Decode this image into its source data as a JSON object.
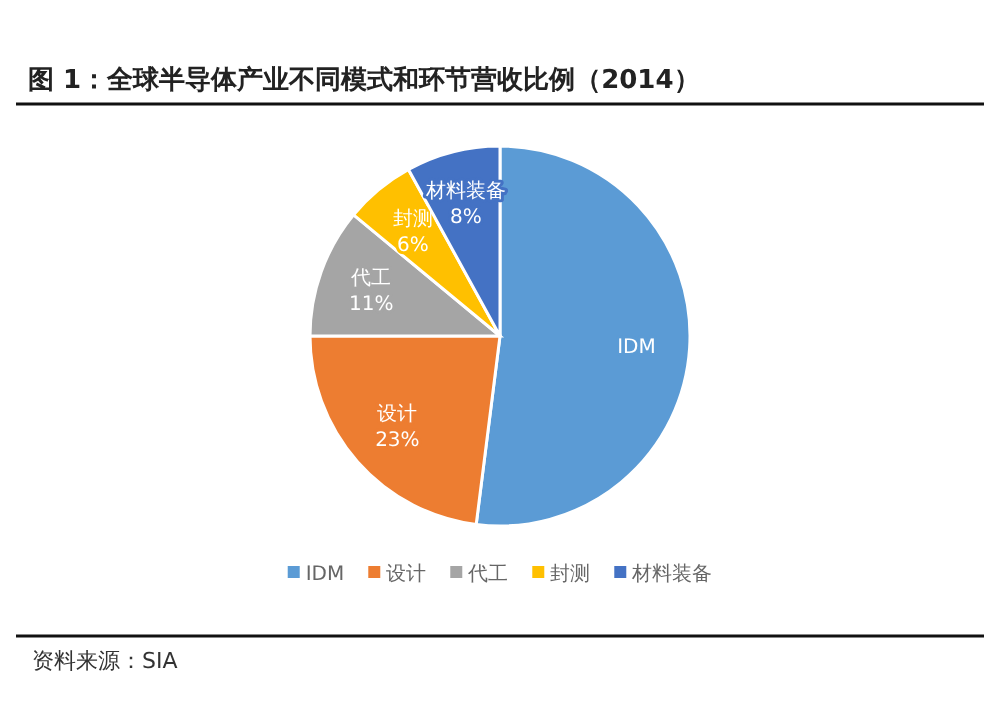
{
  "chart_data": {
    "type": "pie",
    "title": "图 1：全球半导体产业不同模式和环节营收比例（2014）",
    "categories": [
      "IDM",
      "设计",
      "代工",
      "封测",
      "材料装备"
    ],
    "values": [
      52,
      23,
      11,
      6,
      8
    ],
    "value_labels": [
      null,
      "23%",
      "11%",
      "6%",
      "8%"
    ],
    "colors": [
      "#5b9bd5",
      "#ed7d31",
      "#a5a5a5",
      "#ffc000",
      "#4472c4"
    ],
    "legend": "bottom",
    "annotations": [
      "资料来源：SIA"
    ]
  }
}
